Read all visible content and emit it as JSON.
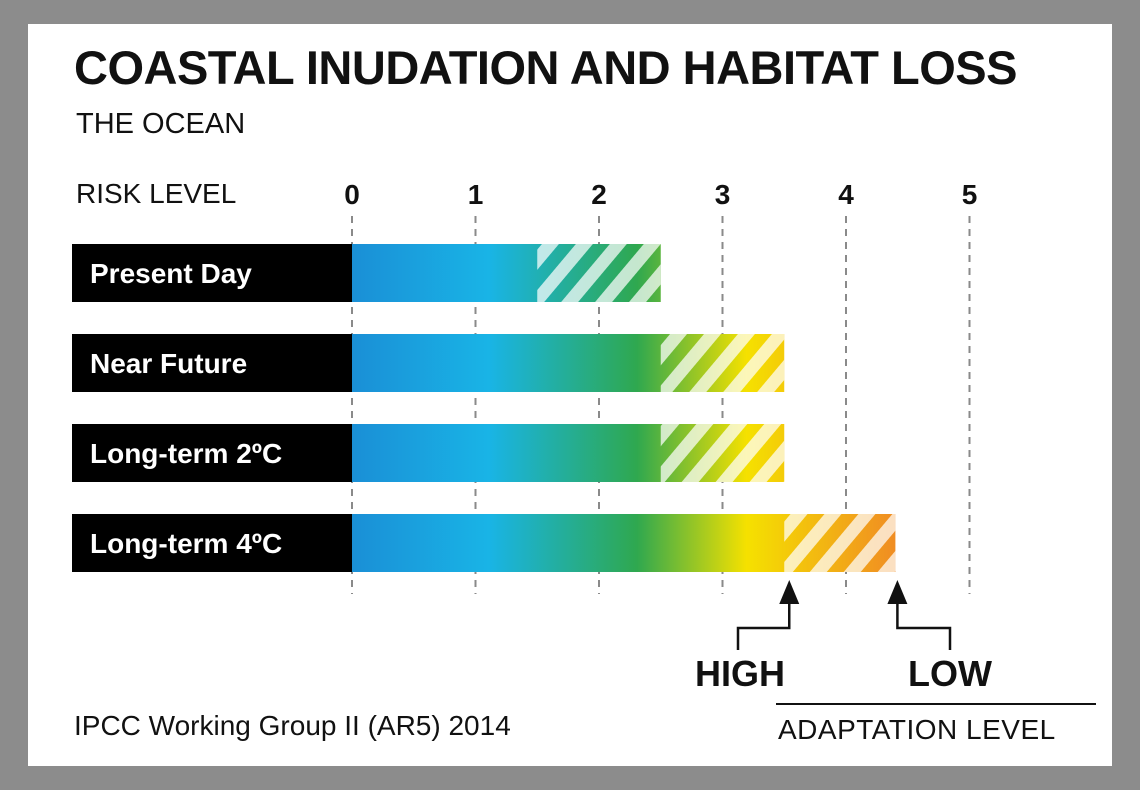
{
  "colors": {
    "frame": "#8c8c8c",
    "label_bg": "#000000",
    "risk_gradient": [
      "#1a8fd6",
      "#19b4e6",
      "#2fa84f",
      "#f5e100",
      "#f08a24"
    ]
  },
  "chart_data": {
    "type": "bar",
    "title": "COASTAL INUDATION AND HABITAT LOSS",
    "subtitle": "THE OCEAN",
    "xlabel": "RISK LEVEL",
    "xlim": [
      0,
      5
    ],
    "ticks": [
      "0",
      "1",
      "2",
      "3",
      "4",
      "5"
    ],
    "grid": true,
    "categories": [
      "Present Day",
      "Near Future",
      "Long-term 2ºC",
      "Long-term 4ºC"
    ],
    "series": [
      {
        "name": "HIGH",
        "values": [
          1.5,
          2.5,
          2.5,
          3.5
        ]
      },
      {
        "name": "LOW",
        "values": [
          2.5,
          3.5,
          3.5,
          4.4
        ]
      }
    ],
    "annotation_high": "HIGH",
    "annotation_low": "LOW",
    "legend_title": "ADAPTATION LEVEL",
    "source": "IPCC Working Group II (AR5) 2014"
  }
}
